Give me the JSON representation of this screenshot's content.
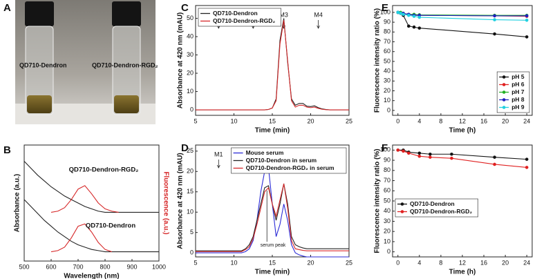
{
  "photo": {
    "panel": "A",
    "captions": [
      "QD710-Dendron",
      "QD710-Dendron-RGD₂"
    ]
  },
  "chart_data": [
    {
      "type": "line",
      "panel": "B",
      "xlabel": "Wavelength (nm)",
      "ylabel": "Absorbance (a.u.)",
      "y2label": "Fluorescence (a.u.)",
      "annotations": [
        "QD710-Dendron-RGD₂",
        "QD710-Dendron"
      ],
      "xlim": [
        500,
        1000
      ],
      "xticks": [
        500,
        600,
        700,
        800,
        900,
        1000
      ],
      "ylim": [
        0,
        1
      ],
      "markers": false,
      "x": [
        500,
        525,
        550,
        575,
        600,
        625,
        650,
        675,
        700,
        725,
        750,
        775,
        800,
        825,
        850,
        875,
        900,
        925,
        950,
        975,
        1000
      ],
      "series": [
        {
          "color": "#222222",
          "values": [
            0.86,
            0.8,
            0.74,
            0.69,
            0.64,
            0.6,
            0.56,
            0.53,
            0.5,
            0.47,
            0.45,
            0.43,
            0.42,
            0.42,
            0.42,
            0.42,
            0.42,
            0.42,
            0.42,
            0.42,
            0.42
          ]
        },
        {
          "color": "#d62728",
          "values": [
            null,
            null,
            null,
            null,
            0.42,
            0.43,
            0.46,
            0.53,
            0.62,
            0.65,
            0.58,
            0.5,
            0.45,
            0.43,
            0.42,
            null,
            null,
            null,
            null,
            null,
            null
          ]
        },
        {
          "color": "#222222",
          "values": [
            0.53,
            0.47,
            0.41,
            0.35,
            0.3,
            0.25,
            0.21,
            0.17,
            0.14,
            0.12,
            0.1,
            0.09,
            0.08,
            0.08,
            0.08,
            0.08,
            0.08,
            0.08,
            0.08,
            0.08,
            0.08
          ]
        },
        {
          "color": "#d62728",
          "values": [
            null,
            null,
            null,
            null,
            0.08,
            0.09,
            0.12,
            0.2,
            0.3,
            0.32,
            0.25,
            0.16,
            0.1,
            0.08,
            null,
            null,
            null,
            null,
            null,
            null,
            null
          ]
        }
      ]
    },
    {
      "type": "line",
      "panel": "C",
      "xlabel": "Time (min)",
      "ylabel": "Absorbance at 420 nm (mAU)",
      "legend": "upper left",
      "markers": false,
      "xlim": [
        5,
        25
      ],
      "xticks": [
        5,
        10,
        15,
        20,
        25
      ],
      "ylim": [
        -3,
        57
      ],
      "yticks": [
        0,
        10,
        20,
        30,
        40,
        50
      ],
      "fraction_markers": [
        {
          "text": "M1",
          "x": 8
        },
        {
          "text": "M2",
          "x": 12.5
        },
        {
          "text": "M3",
          "x": 16.5
        },
        {
          "text": "M4",
          "x": 21
        }
      ],
      "x": [
        5,
        5.5,
        6,
        6.5,
        7,
        7.5,
        8,
        8.5,
        9,
        9.5,
        10,
        10.5,
        11,
        11.5,
        12,
        12.5,
        13,
        13.5,
        14,
        14.5,
        15,
        15.5,
        16,
        16.5,
        17,
        17.5,
        18,
        18.5,
        19,
        19.5,
        20,
        20.5,
        21,
        21.5,
        22,
        22.5,
        23,
        23.5,
        24,
        24.5,
        25
      ],
      "series": [
        {
          "name": "QD710-Dendron",
          "color": "#222222",
          "values": [
            0,
            0,
            0,
            0,
            0,
            0,
            0,
            0,
            0,
            0,
            0,
            0,
            0,
            0,
            0,
            0,
            0,
            0,
            0,
            0.2,
            1,
            6,
            38,
            50,
            26,
            6,
            2.5,
            3.5,
            3.5,
            2,
            1.8,
            2.2,
            1.2,
            0.5,
            0.2,
            0,
            0,
            0,
            0,
            0,
            0
          ]
        },
        {
          "name": "QD710-Dendron-RGD₂",
          "color": "#d62728",
          "values": [
            0,
            0,
            0,
            0,
            0,
            0,
            0,
            0,
            0,
            0,
            0,
            0,
            0,
            0,
            0,
            0,
            0,
            0,
            0,
            0.2,
            1,
            5,
            36,
            49,
            27,
            5,
            1.5,
            2.5,
            2.5,
            1.5,
            1.2,
            1.5,
            0.8,
            0.3,
            0.1,
            0,
            0,
            0,
            0,
            0,
            0
          ]
        }
      ]
    },
    {
      "type": "line",
      "panel": "D",
      "xlabel": "Time (min)",
      "ylabel": "Absorbance at 420 nm (mAU)",
      "legend": "upper right",
      "markers": false,
      "xlim": [
        5,
        25
      ],
      "xticks": [
        5,
        10,
        15,
        20,
        25
      ],
      "ylim": [
        -1,
        26.5
      ],
      "yticks": [
        0,
        5,
        10,
        15,
        20,
        25
      ],
      "fraction_markers": [
        {
          "text": "M1",
          "x": 8
        },
        {
          "text": "M2",
          "x": 12.5
        },
        {
          "text": "M3",
          "x": 16.5
        },
        {
          "text": "M4",
          "x": 21
        }
      ],
      "annotations": [
        "serum peak"
      ],
      "x": [
        5,
        5.5,
        6,
        6.5,
        7,
        7.5,
        8,
        8.5,
        9,
        9.5,
        10,
        10.5,
        11,
        11.5,
        12,
        12.5,
        13,
        13.5,
        14,
        14.5,
        15,
        15.5,
        16,
        16.5,
        17,
        17.5,
        18,
        18.5,
        19,
        19.5,
        20,
        20.5,
        21,
        21.5,
        22,
        22.5,
        23,
        23.5,
        24,
        24.5,
        25
      ],
      "series": [
        {
          "name": "Mouse serum",
          "color": "#2b2bd6",
          "values": [
            0,
            0,
            0,
            0,
            0,
            0,
            0,
            0,
            0,
            0,
            0,
            0,
            0,
            0.3,
            1,
            3,
            8,
            15,
            20,
            21,
            12,
            4,
            7,
            12,
            8,
            2,
            0,
            -0.5,
            -0.8,
            -1,
            -1,
            -1,
            -1,
            -1,
            -1,
            -1,
            -1,
            -1,
            -1,
            -1,
            -1
          ]
        },
        {
          "name": "QD710-Dendron in serum",
          "color": "#222222",
          "values": [
            0.5,
            0.5,
            0.5,
            0.5,
            0.5,
            0.5,
            0.5,
            0.5,
            0.5,
            0.5,
            0.5,
            0.5,
            0.5,
            1,
            2,
            4,
            8,
            12,
            16,
            16.5,
            12,
            8,
            12,
            17,
            12,
            4,
            2,
            1.5,
            1.2,
            1,
            1,
            1,
            1,
            1,
            1,
            1,
            1,
            1,
            1,
            1,
            1
          ]
        },
        {
          "name": "QD710-Dendron-RGD₂ in serum",
          "color": "#d62728",
          "values": [
            0.3,
            0.3,
            0.3,
            0.3,
            0.3,
            0.3,
            0.3,
            0.3,
            0.3,
            0.3,
            0.3,
            0.3,
            0.3,
            0.8,
            1.5,
            3.5,
            7,
            11,
            15,
            16,
            12,
            9,
            13,
            17,
            11,
            3,
            1,
            0.8,
            0.6,
            0.5,
            0.5,
            0.5,
            0.5,
            0.5,
            0.5,
            0.5,
            0.5,
            0.5,
            0.5,
            0.5,
            0.5
          ]
        }
      ]
    },
    {
      "type": "line",
      "panel": "E",
      "xlabel": "Time (h)",
      "ylabel": "Fluorescence intensity ratio (%)",
      "legend": "lower right",
      "markers": true,
      "xlim": [
        -1,
        25
      ],
      "xticks": [
        0,
        4,
        8,
        12,
        16,
        20,
        24
      ],
      "ylim": [
        -5,
        107
      ],
      "yticks": [
        0,
        10,
        20,
        30,
        40,
        50,
        60,
        70,
        80,
        90,
        100
      ],
      "x": [
        0,
        0.5,
        1,
        2,
        3,
        4,
        18,
        24
      ],
      "series": [
        {
          "name": "pH 5",
          "color": "#111111",
          "values": [
            100,
            99,
            97,
            86,
            85,
            84,
            78,
            75
          ]
        },
        {
          "name": "pH 6",
          "color": "#e02020",
          "values": [
            100,
            99,
            99,
            98,
            97,
            97,
            96.5,
            96
          ]
        },
        {
          "name": "pH 7",
          "color": "#22b022",
          "values": [
            100,
            100,
            99,
            98,
            98,
            97.5,
            97,
            97
          ]
        },
        {
          "name": "pH 8",
          "color": "#2020c0",
          "values": [
            100,
            99,
            99,
            98,
            97,
            97,
            96.5,
            96.5
          ]
        },
        {
          "name": "pH 9",
          "color": "#20d0e0",
          "values": [
            100,
            99,
            98,
            97,
            96,
            95,
            92.5,
            92
          ]
        }
      ]
    },
    {
      "type": "line",
      "panel": "F",
      "xlabel": "Time (h)",
      "ylabel": "Fluorescence intensity ratio (%)",
      "legend": "center left",
      "markers": true,
      "xlim": [
        -1,
        25
      ],
      "xticks": [
        0,
        4,
        8,
        12,
        16,
        20,
        24
      ],
      "ylim": [
        -5,
        105
      ],
      "yticks": [
        0,
        10,
        20,
        30,
        40,
        50,
        60,
        70,
        80,
        90,
        100
      ],
      "x": [
        0,
        1,
        2,
        4,
        6,
        10,
        18,
        24
      ],
      "series": [
        {
          "name": "QD710-Dendron",
          "color": "#111111",
          "values": [
            100,
            100,
            98,
            97,
            96,
            96,
            93,
            91
          ]
        },
        {
          "name": "QD710-Dendron-RGD₂",
          "color": "#e02020",
          "values": [
            100,
            99,
            97,
            94,
            93,
            92,
            86,
            83
          ]
        }
      ]
    }
  ]
}
